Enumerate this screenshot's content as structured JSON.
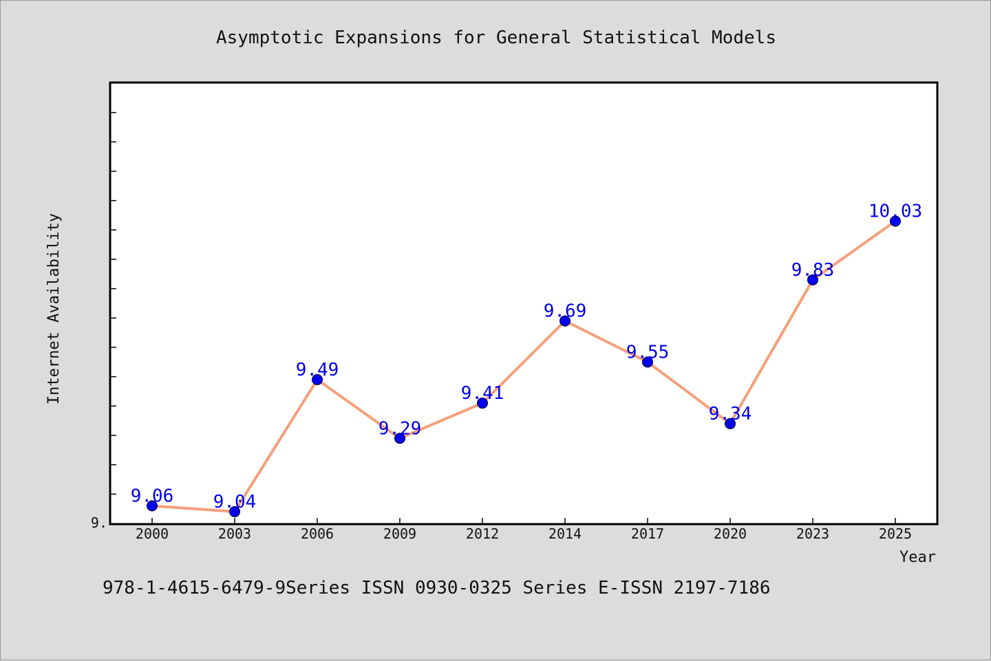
{
  "chart_data": {
    "type": "line",
    "title": "Asymptotic Expansions for General Statistical Models",
    "xlabel": "Year",
    "ylabel": "Internet Availability",
    "categories": [
      "2000",
      "2003",
      "2006",
      "2009",
      "2012",
      "2014",
      "2017",
      "2020",
      "2023",
      "2025"
    ],
    "series": [
      {
        "values": [
          9.06,
          9.04,
          9.49,
          9.29,
          9.41,
          9.69,
          9.55,
          9.34,
          9.83,
          10.03
        ],
        "data_labels": [
          "9.06",
          "9.04",
          "9.49",
          "9.29",
          "9.41",
          "9.69",
          "9.55",
          "9.34",
          "9.83",
          "10.03"
        ],
        "line_color": "#f4a07a",
        "marker_color": "#0000ee"
      }
    ],
    "ylim": [
      9.0,
      10.5
    ],
    "ytick_label": "9.",
    "yticks_minor": [
      9.1,
      9.2,
      9.3,
      9.4,
      9.5,
      9.6,
      9.7,
      9.8,
      9.9,
      10.0,
      10.1,
      10.2,
      10.3,
      10.4
    ],
    "grid": false,
    "legend": false
  },
  "footer": "978-1-4615-6479-9Series ISSN 0930-0325 Series E-ISSN 2197-7186"
}
